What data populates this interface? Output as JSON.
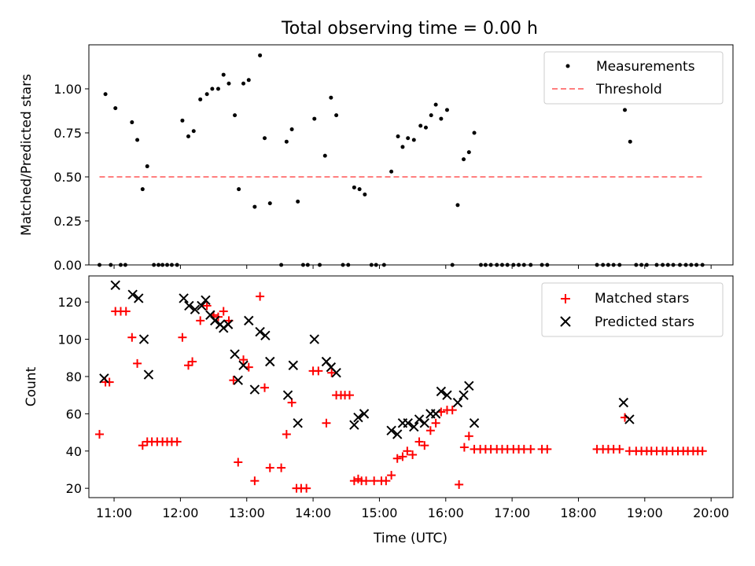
{
  "title": "Total observing time = 0.00 h",
  "chart_data": [
    {
      "type": "scatter",
      "ylabel": "Matched/Predicted stars",
      "xlabel": "",
      "xlim": [
        10.62,
        20.33
      ],
      "ylim": [
        0,
        1.25
      ],
      "yticks": [
        0.0,
        0.25,
        0.5,
        0.75,
        1.0
      ],
      "ytick_labels": [
        "0.00",
        "0.25",
        "0.50",
        "0.75",
        "1.00"
      ],
      "legend_position": "top-right",
      "grid": false,
      "series": [
        {
          "name": "Measurements",
          "marker": "dot",
          "color": "#000000",
          "points": [
            [
              10.78,
              0.0
            ],
            [
              10.87,
              0.97
            ],
            [
              10.95,
              0.0
            ],
            [
              11.02,
              0.89
            ],
            [
              11.1,
              0.0
            ],
            [
              11.17,
              0.0
            ],
            [
              11.27,
              0.81
            ],
            [
              11.35,
              0.71
            ],
            [
              11.43,
              0.43
            ],
            [
              11.5,
              0.56
            ],
            [
              11.6,
              0.0
            ],
            [
              11.67,
              0.0
            ],
            [
              11.73,
              0.0
            ],
            [
              11.8,
              0.0
            ],
            [
              11.87,
              0.0
            ],
            [
              11.95,
              0.0
            ],
            [
              12.03,
              0.82
            ],
            [
              12.12,
              0.73
            ],
            [
              12.2,
              0.76
            ],
            [
              12.3,
              0.94
            ],
            [
              12.4,
              0.97
            ],
            [
              12.48,
              1.0
            ],
            [
              12.57,
              1.0
            ],
            [
              12.65,
              1.08
            ],
            [
              12.73,
              1.03
            ],
            [
              12.82,
              0.85
            ],
            [
              12.88,
              0.43
            ],
            [
              12.95,
              1.03
            ],
            [
              13.03,
              1.05
            ],
            [
              13.12,
              0.33
            ],
            [
              13.2,
              1.19
            ],
            [
              13.27,
              0.72
            ],
            [
              13.35,
              0.35
            ],
            [
              13.52,
              0.0
            ],
            [
              13.6,
              0.7
            ],
            [
              13.68,
              0.77
            ],
            [
              13.77,
              0.36
            ],
            [
              13.85,
              0.0
            ],
            [
              13.92,
              0.0
            ],
            [
              14.02,
              0.83
            ],
            [
              14.1,
              0.0
            ],
            [
              14.18,
              0.62
            ],
            [
              14.27,
              0.95
            ],
            [
              14.35,
              0.85
            ],
            [
              14.45,
              0.0
            ],
            [
              14.53,
              0.0
            ],
            [
              14.62,
              0.44
            ],
            [
              14.7,
              0.43
            ],
            [
              14.78,
              0.4
            ],
            [
              14.88,
              0.0
            ],
            [
              14.95,
              0.0
            ],
            [
              15.07,
              0.0
            ],
            [
              15.18,
              0.53
            ],
            [
              15.28,
              0.73
            ],
            [
              15.35,
              0.67
            ],
            [
              15.43,
              0.72
            ],
            [
              15.52,
              0.71
            ],
            [
              15.62,
              0.79
            ],
            [
              15.7,
              0.78
            ],
            [
              15.78,
              0.85
            ],
            [
              15.85,
              0.91
            ],
            [
              15.93,
              0.83
            ],
            [
              16.02,
              0.88
            ],
            [
              16.1,
              0.0
            ],
            [
              16.18,
              0.34
            ],
            [
              16.27,
              0.6
            ],
            [
              16.35,
              0.64
            ],
            [
              16.43,
              0.75
            ],
            [
              16.53,
              0.0
            ],
            [
              16.6,
              0.0
            ],
            [
              16.68,
              0.0
            ],
            [
              16.77,
              0.0
            ],
            [
              16.85,
              0.0
            ],
            [
              16.93,
              0.0
            ],
            [
              17.02,
              0.0
            ],
            [
              17.1,
              0.0
            ],
            [
              17.18,
              0.0
            ],
            [
              17.28,
              0.0
            ],
            [
              17.45,
              0.0
            ],
            [
              17.53,
              0.0
            ],
            [
              18.28,
              0.0
            ],
            [
              18.37,
              0.0
            ],
            [
              18.45,
              0.0
            ],
            [
              18.53,
              0.0
            ],
            [
              18.62,
              0.0
            ],
            [
              18.7,
              0.88
            ],
            [
              18.78,
              0.7
            ],
            [
              18.87,
              0.0
            ],
            [
              18.95,
              0.0
            ],
            [
              19.03,
              0.0
            ],
            [
              19.18,
              0.0
            ],
            [
              19.27,
              0.0
            ],
            [
              19.35,
              0.0
            ],
            [
              19.43,
              0.0
            ],
            [
              19.53,
              0.0
            ],
            [
              19.62,
              0.0
            ],
            [
              19.7,
              0.0
            ],
            [
              19.78,
              0.0
            ],
            [
              19.87,
              0.0
            ]
          ]
        },
        {
          "name": "Threshold",
          "marker": "dashed-line",
          "color": "#ff7f7f",
          "points": [
            [
              10.78,
              0.5
            ],
            [
              19.87,
              0.5
            ]
          ]
        }
      ]
    },
    {
      "type": "scatter",
      "xlabel": "Time (UTC)",
      "ylabel": "Count",
      "xlim": [
        10.62,
        20.33
      ],
      "ylim": [
        15,
        134
      ],
      "yticks": [
        20,
        40,
        60,
        80,
        100,
        120
      ],
      "xticks": [
        11,
        12,
        13,
        14,
        15,
        16,
        17,
        18,
        19,
        20
      ],
      "xtick_labels": [
        "11:00",
        "12:00",
        "13:00",
        "14:00",
        "15:00",
        "16:00",
        "17:00",
        "18:00",
        "19:00",
        "20:00"
      ],
      "legend_position": "top-right",
      "grid": false,
      "series": [
        {
          "name": "Matched stars",
          "marker": "plus",
          "color": "#ff0000",
          "points": [
            [
              10.78,
              49
            ],
            [
              10.87,
              77
            ],
            [
              10.93,
              77
            ],
            [
              11.02,
              115
            ],
            [
              11.1,
              115
            ],
            [
              11.18,
              115
            ],
            [
              11.27,
              101
            ],
            [
              11.35,
              87
            ],
            [
              11.43,
              43
            ],
            [
              11.5,
              45
            ],
            [
              11.57,
              45
            ],
            [
              11.65,
              45
            ],
            [
              11.73,
              45
            ],
            [
              11.8,
              45
            ],
            [
              11.87,
              45
            ],
            [
              11.95,
              45
            ],
            [
              12.03,
              101
            ],
            [
              12.12,
              86
            ],
            [
              12.18,
              88
            ],
            [
              12.3,
              110
            ],
            [
              12.4,
              118
            ],
            [
              12.5,
              113
            ],
            [
              12.57,
              112
            ],
            [
              12.65,
              115
            ],
            [
              12.73,
              110
            ],
            [
              12.8,
              78
            ],
            [
              12.87,
              34
            ],
            [
              12.95,
              89
            ],
            [
              13.03,
              85
            ],
            [
              13.12,
              24
            ],
            [
              13.2,
              123
            ],
            [
              13.27,
              74
            ],
            [
              13.35,
              31
            ],
            [
              13.52,
              31
            ],
            [
              13.6,
              49
            ],
            [
              13.68,
              66
            ],
            [
              13.75,
              20
            ],
            [
              13.82,
              20
            ],
            [
              13.9,
              20
            ],
            [
              14.0,
              83
            ],
            [
              14.08,
              83
            ],
            [
              14.2,
              55
            ],
            [
              14.28,
              82
            ],
            [
              14.35,
              70
            ],
            [
              14.42,
              70
            ],
            [
              14.48,
              70
            ],
            [
              14.55,
              70
            ],
            [
              14.62,
              24
            ],
            [
              14.68,
              25
            ],
            [
              14.73,
              24
            ],
            [
              14.8,
              24
            ],
            [
              14.92,
              24
            ],
            [
              15.03,
              24
            ],
            [
              15.1,
              24
            ],
            [
              15.18,
              27
            ],
            [
              15.27,
              36
            ],
            [
              15.35,
              37
            ],
            [
              15.42,
              40
            ],
            [
              15.5,
              38
            ],
            [
              15.6,
              45
            ],
            [
              15.68,
              43
            ],
            [
              15.77,
              51
            ],
            [
              15.85,
              55
            ],
            [
              15.93,
              61
            ],
            [
              16.02,
              62
            ],
            [
              16.1,
              62
            ],
            [
              16.2,
              22
            ],
            [
              16.28,
              42
            ],
            [
              16.35,
              48
            ],
            [
              16.43,
              41
            ],
            [
              16.52,
              41
            ],
            [
              16.6,
              41
            ],
            [
              16.68,
              41
            ],
            [
              16.77,
              41
            ],
            [
              16.85,
              41
            ],
            [
              16.93,
              41
            ],
            [
              17.02,
              41
            ],
            [
              17.1,
              41
            ],
            [
              17.18,
              41
            ],
            [
              17.28,
              41
            ],
            [
              17.45,
              41
            ],
            [
              17.53,
              41
            ],
            [
              18.28,
              41
            ],
            [
              18.37,
              41
            ],
            [
              18.45,
              41
            ],
            [
              18.53,
              41
            ],
            [
              18.62,
              41
            ],
            [
              18.7,
              58
            ],
            [
              18.77,
              40
            ],
            [
              18.87,
              40
            ],
            [
              18.95,
              40
            ],
            [
              19.03,
              40
            ],
            [
              19.1,
              40
            ],
            [
              19.18,
              40
            ],
            [
              19.27,
              40
            ],
            [
              19.33,
              40
            ],
            [
              19.42,
              40
            ],
            [
              19.5,
              40
            ],
            [
              19.58,
              40
            ],
            [
              19.65,
              40
            ],
            [
              19.73,
              40
            ],
            [
              19.8,
              40
            ],
            [
              19.87,
              40
            ]
          ]
        },
        {
          "name": "Predicted stars",
          "marker": "x",
          "color": "#000000",
          "points": [
            [
              10.85,
              79
            ],
            [
              11.02,
              129
            ],
            [
              11.28,
              124
            ],
            [
              11.37,
              122
            ],
            [
              11.45,
              100
            ],
            [
              11.52,
              81
            ],
            [
              12.05,
              122
            ],
            [
              12.13,
              118
            ],
            [
              12.22,
              116
            ],
            [
              12.32,
              118
            ],
            [
              12.38,
              121
            ],
            [
              12.45,
              113
            ],
            [
              12.52,
              110
            ],
            [
              12.6,
              108
            ],
            [
              12.65,
              106
            ],
            [
              12.72,
              108
            ],
            [
              12.82,
              92
            ],
            [
              12.87,
              78
            ],
            [
              12.95,
              86
            ],
            [
              13.03,
              110
            ],
            [
              13.12,
              73
            ],
            [
              13.2,
              104
            ],
            [
              13.28,
              102
            ],
            [
              13.35,
              88
            ],
            [
              13.62,
              70
            ],
            [
              13.7,
              86
            ],
            [
              13.77,
              55
            ],
            [
              14.02,
              100
            ],
            [
              14.2,
              88
            ],
            [
              14.27,
              85
            ],
            [
              14.35,
              82
            ],
            [
              14.62,
              54
            ],
            [
              14.68,
              58
            ],
            [
              14.77,
              60
            ],
            [
              15.18,
              51
            ],
            [
              15.27,
              49
            ],
            [
              15.35,
              55
            ],
            [
              15.43,
              55
            ],
            [
              15.52,
              53
            ],
            [
              15.6,
              57
            ],
            [
              15.68,
              55
            ],
            [
              15.77,
              60
            ],
            [
              15.85,
              60
            ],
            [
              15.93,
              72
            ],
            [
              16.02,
              70
            ],
            [
              16.18,
              66
            ],
            [
              16.27,
              70
            ],
            [
              16.35,
              75
            ],
            [
              16.43,
              55
            ],
            [
              18.68,
              66
            ],
            [
              18.77,
              57
            ]
          ]
        }
      ]
    }
  ]
}
